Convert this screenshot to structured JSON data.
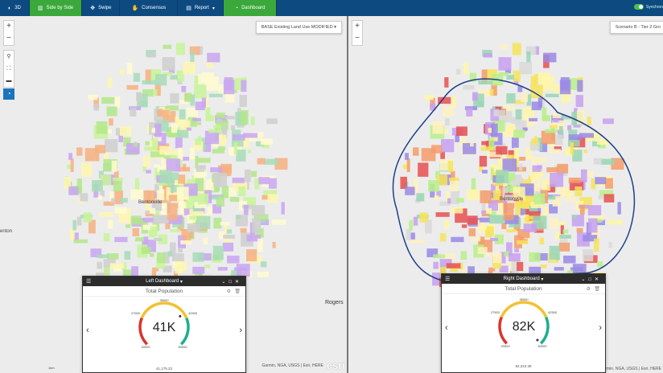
{
  "toolbar": {
    "items": [
      {
        "label": "3D",
        "icon": "globe-icon",
        "active": false
      },
      {
        "label": "Side by Side",
        "icon": "side-by-side-icon",
        "active": true
      },
      {
        "label": "Swipe",
        "icon": "swipe-icon",
        "active": false
      },
      {
        "label": "Consensus",
        "icon": "hand-icon",
        "active": false
      },
      {
        "label": "Report",
        "icon": "report-icon",
        "active": false,
        "dropdown": true
      },
      {
        "label": "Dashboard",
        "icon": "dashboard-icon",
        "active": true
      }
    ],
    "sync_label": "Synchron"
  },
  "colors": {
    "toolbar": "#0d4a80",
    "active": "#3aa83a",
    "gauge_red": "#d9352b",
    "gauge_yellow": "#f2c12e",
    "gauge_green": "#1fae8c"
  },
  "left": {
    "layer_select": "BASE Existing Land Use MODIFIED",
    "place_labels": [
      "Bentonville",
      "Rogers",
      "enton"
    ],
    "attribution": "Garmin, NGA, USGS | Esri, HERE",
    "esri": "esri",
    "scale": "1km",
    "dashboard": {
      "title": "Left Dashboard",
      "widget": "Total Population",
      "value_label": "41K",
      "value": 41175.23,
      "total_text": "41,175.23",
      "ticks": [
        "20000",
        "27500",
        "35000",
        "42500",
        "50000"
      ],
      "min": 20000,
      "max": 50000
    }
  },
  "right": {
    "layer_select": "Scenario B - Tier 2 Gro",
    "place_labels": [
      "Bentonville"
    ],
    "attribution": "Garmin, NGA, USGS | Esri, HERE",
    "dashboard": {
      "title": "Right Dashboard",
      "widget": "Total Population",
      "value_label": "82K",
      "value": 82310.39,
      "total_text": "82,310.39",
      "ticks": [
        "20000",
        "27500",
        "35000",
        "42500",
        "50000"
      ],
      "min": 20000,
      "max": 50000
    }
  },
  "map_controls": {
    "zoom_in": "+",
    "zoom_out": "−"
  }
}
